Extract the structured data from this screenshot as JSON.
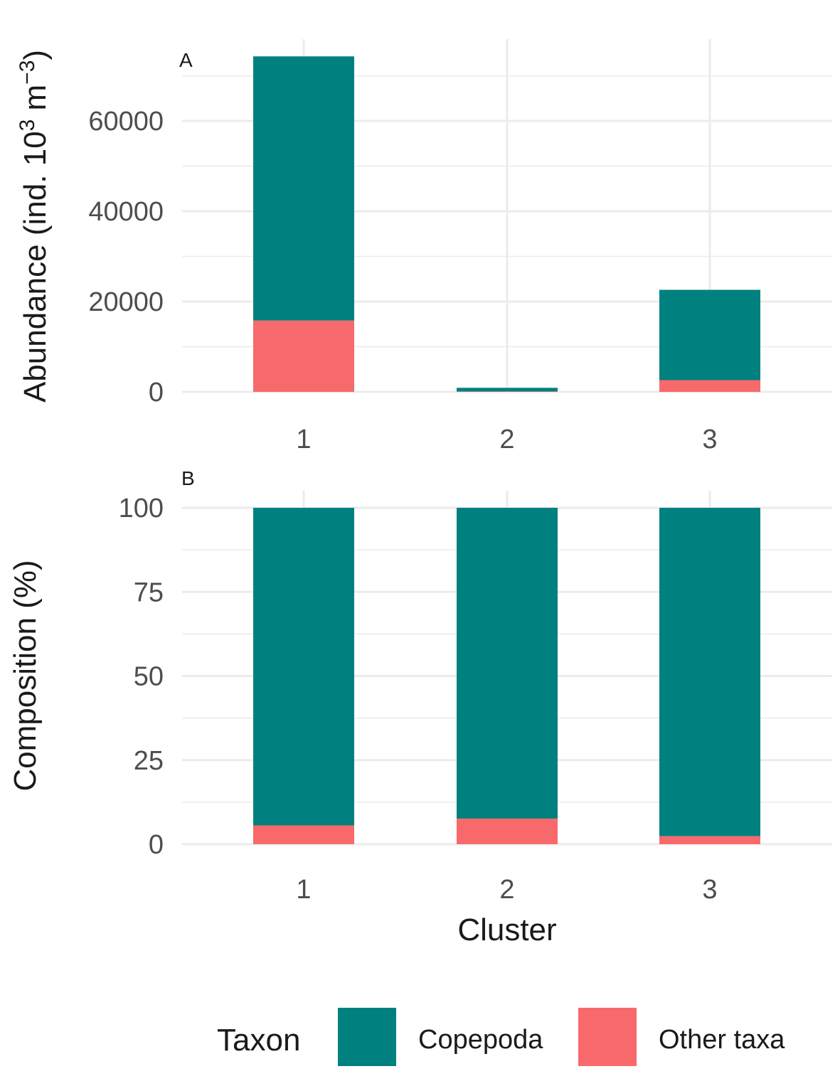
{
  "chart_data": [
    {
      "type": "bar",
      "stacked": true,
      "panel_tag": "A",
      "categories": [
        "1",
        "2",
        "3"
      ],
      "series": [
        {
          "name": "Copepoda",
          "color": "#00807f",
          "values": [
            58500,
            800,
            20000
          ]
        },
        {
          "name": "Other taxa",
          "color": "#f8696b",
          "values": [
            15800,
            100,
            2600
          ]
        }
      ],
      "ylabel": "Abundance (ind. 10",
      "ylabel_sup1": "3",
      "ylabel_mid": " m",
      "ylabel_sup2": "−3",
      "ylabel_end": ")",
      "yticks": [
        "0",
        "20000",
        "40000",
        "60000"
      ],
      "ytick_values": [
        0,
        20000,
        40000,
        60000
      ],
      "ylim": [
        0,
        74500
      ],
      "grid": true
    },
    {
      "type": "bar",
      "stacked": true,
      "panel_tag": "B",
      "categories": [
        "1",
        "2",
        "3"
      ],
      "series": [
        {
          "name": "Copepoda",
          "color": "#00807f",
          "values": [
            94.4,
            92.4,
            97.6
          ]
        },
        {
          "name": "Other taxa",
          "color": "#f8696b",
          "values": [
            5.6,
            7.6,
            2.4
          ]
        }
      ],
      "ylabel": "Composition (%)",
      "yticks": [
        "0",
        "25",
        "50",
        "75",
        "100"
      ],
      "ytick_values": [
        0,
        25,
        50,
        75,
        100
      ],
      "ylim": [
        0,
        100
      ],
      "xlabel": "Cluster",
      "grid": true
    }
  ],
  "legend": {
    "title": "Taxon",
    "placement": "bottom",
    "items": [
      {
        "label": "Copepoda",
        "color": "#00807f"
      },
      {
        "label": "Other taxa",
        "color": "#f8696b"
      }
    ]
  }
}
